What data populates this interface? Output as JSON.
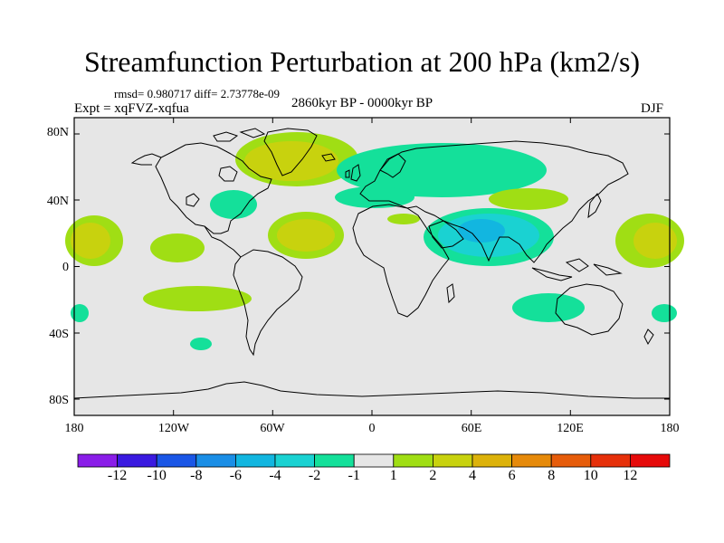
{
  "title": "Streamfunction Perturbation at 200 hPa (km2/s)",
  "stats": "rmsd= 0.980717 diff= 2.73778e-09",
  "subtitle": "2860kyr BP - 0000kyr BP",
  "experiment": "Expt = xqFVZ-xqfua",
  "season": "DJF",
  "lat_labels": [
    "80N",
    "40N",
    "0",
    "40S",
    "80S"
  ],
  "lon_labels": [
    "180",
    "120W",
    "60W",
    "0",
    "60E",
    "120E",
    "180"
  ],
  "colorbar": {
    "labels": [
      "-12",
      "-10",
      "-8",
      "-6",
      "-4",
      "-2",
      "-1",
      "1",
      "2",
      "4",
      "6",
      "8",
      "10",
      "12"
    ],
    "colors": [
      "#8a1de8",
      "#3a1ae0",
      "#1a56e6",
      "#1a8ee6",
      "#12b6e0",
      "#1ad2d2",
      "#14e09a",
      "#e6e6e6",
      "#a0de14",
      "#c8d20e",
      "#dcb20a",
      "#e68a0a",
      "#e65c0a",
      "#e6300a",
      "#e60a0a"
    ]
  },
  "palette": {
    "background": "#e6e6e6",
    "neg1": "#14e09a",
    "neg2": "#1ad2d2",
    "neg3": "#12b6e0",
    "pos1": "#a0de14",
    "pos2": "#c8d20e"
  }
}
